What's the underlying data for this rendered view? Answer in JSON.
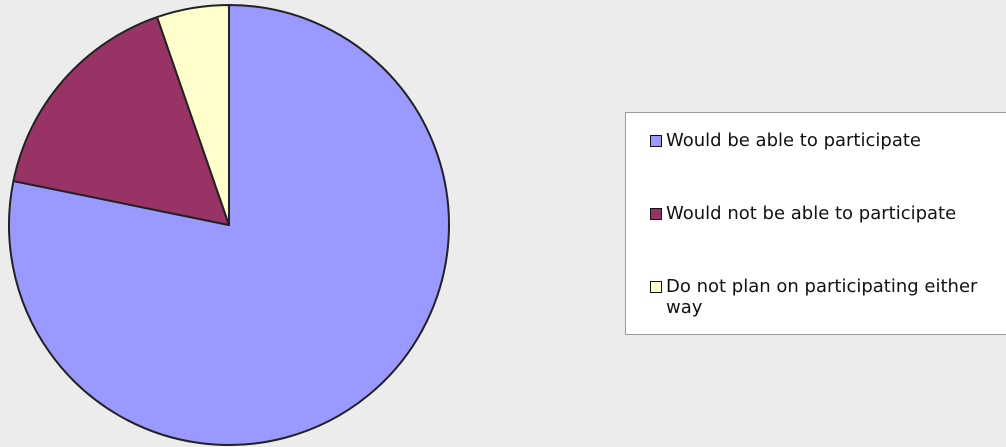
{
  "chart_data": {
    "type": "pie",
    "title": "",
    "slices": [
      {
        "label": "Would be able to participate",
        "value": 78.2,
        "color": "#9999ff"
      },
      {
        "label": "Would not be able to participate",
        "value": 16.5,
        "color": "#993366"
      },
      {
        "label": "Do not plan on participating either way",
        "value": 5.3,
        "color": "#ffffcc"
      }
    ],
    "start_angle_deg": 0,
    "direction": "clockwise",
    "slice_outline_color": "#222222",
    "legend_position": "right"
  }
}
